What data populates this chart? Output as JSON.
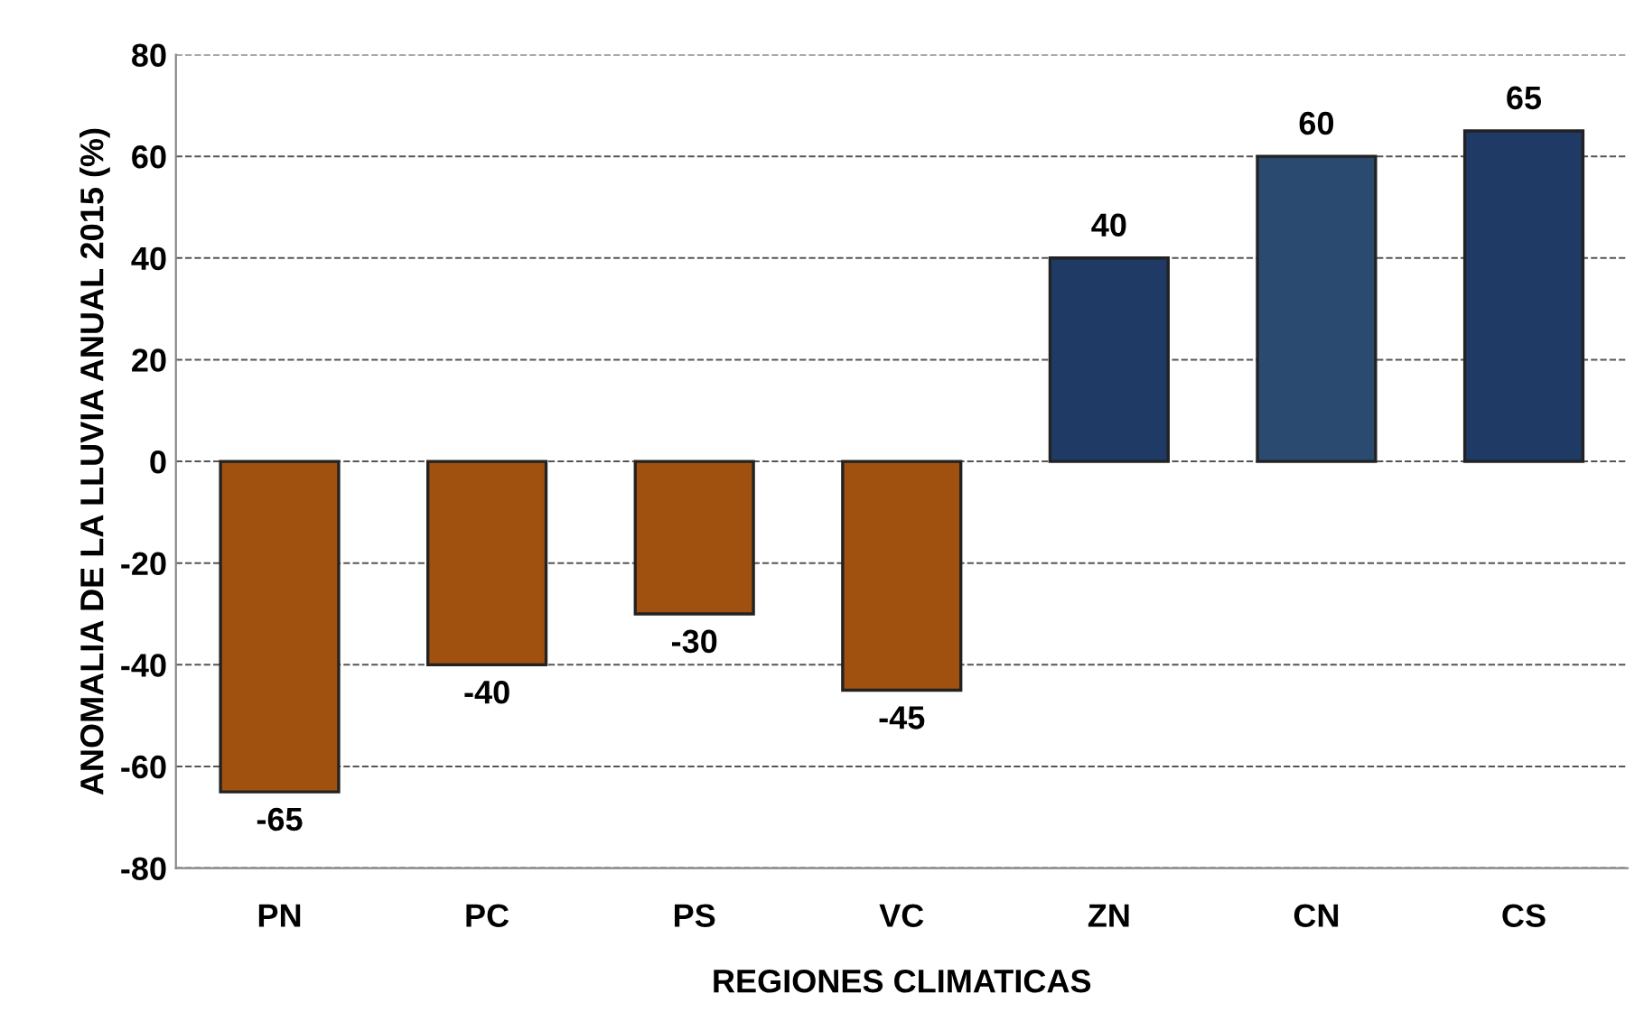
{
  "chart_data": {
    "type": "bar",
    "xlabel": "REGIONES CLIMATICAS",
    "ylabel": "ANOMALIA DE LA LLUVIA ANUAL 2015 (%)",
    "categories": [
      "PN",
      "PC",
      "PS",
      "VC",
      "ZN",
      "CN",
      "CS"
    ],
    "values": [
      -65,
      -40,
      -30,
      -45,
      40,
      60,
      65
    ],
    "colors": [
      "#a0500f",
      "#a0500f",
      "#a0500f",
      "#a0500f",
      "#1f3a64",
      "#2a4a70",
      "#1f3a64"
    ],
    "ylim": [
      -80,
      80
    ],
    "yticks": [
      -80,
      -60,
      -40,
      -20,
      0,
      20,
      40,
      60,
      80
    ],
    "grid": "y",
    "line_style": "dashed",
    "data_labels": true
  }
}
